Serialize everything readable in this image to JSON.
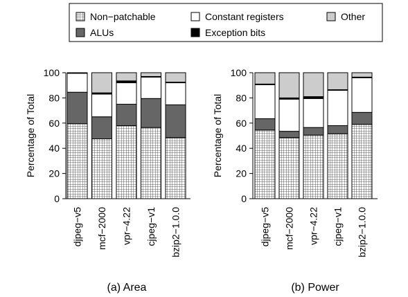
{
  "legend": {
    "items": [
      {
        "key": "nonpatch",
        "label": "Non−patchable"
      },
      {
        "key": "alu",
        "label": "ALUs"
      },
      {
        "key": "const",
        "label": "Constant registers"
      },
      {
        "key": "exc",
        "label": "Exception bits"
      },
      {
        "key": "other",
        "label": "Other"
      }
    ]
  },
  "chart_data": [
    {
      "type": "bar",
      "stacked": true,
      "caption": "(a) Area",
      "ylabel": "Percentage of Total",
      "ylim": [
        0,
        100
      ],
      "yticks": [
        0,
        20,
        40,
        60,
        80,
        100
      ],
      "categories": [
        "djpeg−v5",
        "mcf−2000",
        "vpr−4.22",
        "cjpeg−v1",
        "bzip2−1.0.0"
      ],
      "series": [
        {
          "key": "nonpatch",
          "name": "Non−patchable",
          "values": [
            59.5,
            47.5,
            58,
            56.5,
            48.5
          ]
        },
        {
          "key": "alu",
          "name": "ALUs",
          "values": [
            25,
            17.5,
            17,
            23,
            26
          ]
        },
        {
          "key": "const",
          "name": "Constant registers",
          "values": [
            15,
            18,
            17,
            17,
            17.5
          ]
        },
        {
          "key": "exc",
          "name": "Exception bits",
          "values": [
            0.5,
            1,
            1.5,
            0.5,
            0.5
          ]
        },
        {
          "key": "other",
          "name": "Other",
          "values": [
            0,
            16,
            6.5,
            3,
            7.5
          ]
        }
      ]
    },
    {
      "type": "bar",
      "stacked": true,
      "caption": "(b) Power",
      "ylabel": "Percentage of Total",
      "ylim": [
        0,
        100
      ],
      "yticks": [
        0,
        20,
        40,
        60,
        80,
        100
      ],
      "categories": [
        "djpeg−v5",
        "mcf−2000",
        "vpr−4.22",
        "cjpeg−v1",
        "bzip2−1.0.0"
      ],
      "series": [
        {
          "key": "nonpatch",
          "name": "Non−patchable",
          "values": [
            54.5,
            48.5,
            50.5,
            51.5,
            59
          ]
        },
        {
          "key": "alu",
          "name": "ALUs",
          "values": [
            9,
            5,
            6,
            6.5,
            9.5
          ]
        },
        {
          "key": "const",
          "name": "Constant registers",
          "values": [
            27,
            25.5,
            23,
            28,
            27.5
          ]
        },
        {
          "key": "exc",
          "name": "Exception bits",
          "values": [
            0.5,
            1,
            1.5,
            0.5,
            0.5
          ]
        },
        {
          "key": "other",
          "name": "Other",
          "values": [
            9,
            20,
            19,
            13.5,
            3.5
          ]
        }
      ]
    }
  ],
  "colors": {
    "nonpatch_fill": "#ffffff",
    "nonpatch_grid": "#333333",
    "alu": "#666666",
    "const": "#ffffff",
    "exc": "#000000",
    "other": "#cccccc",
    "stroke": "#000000"
  }
}
